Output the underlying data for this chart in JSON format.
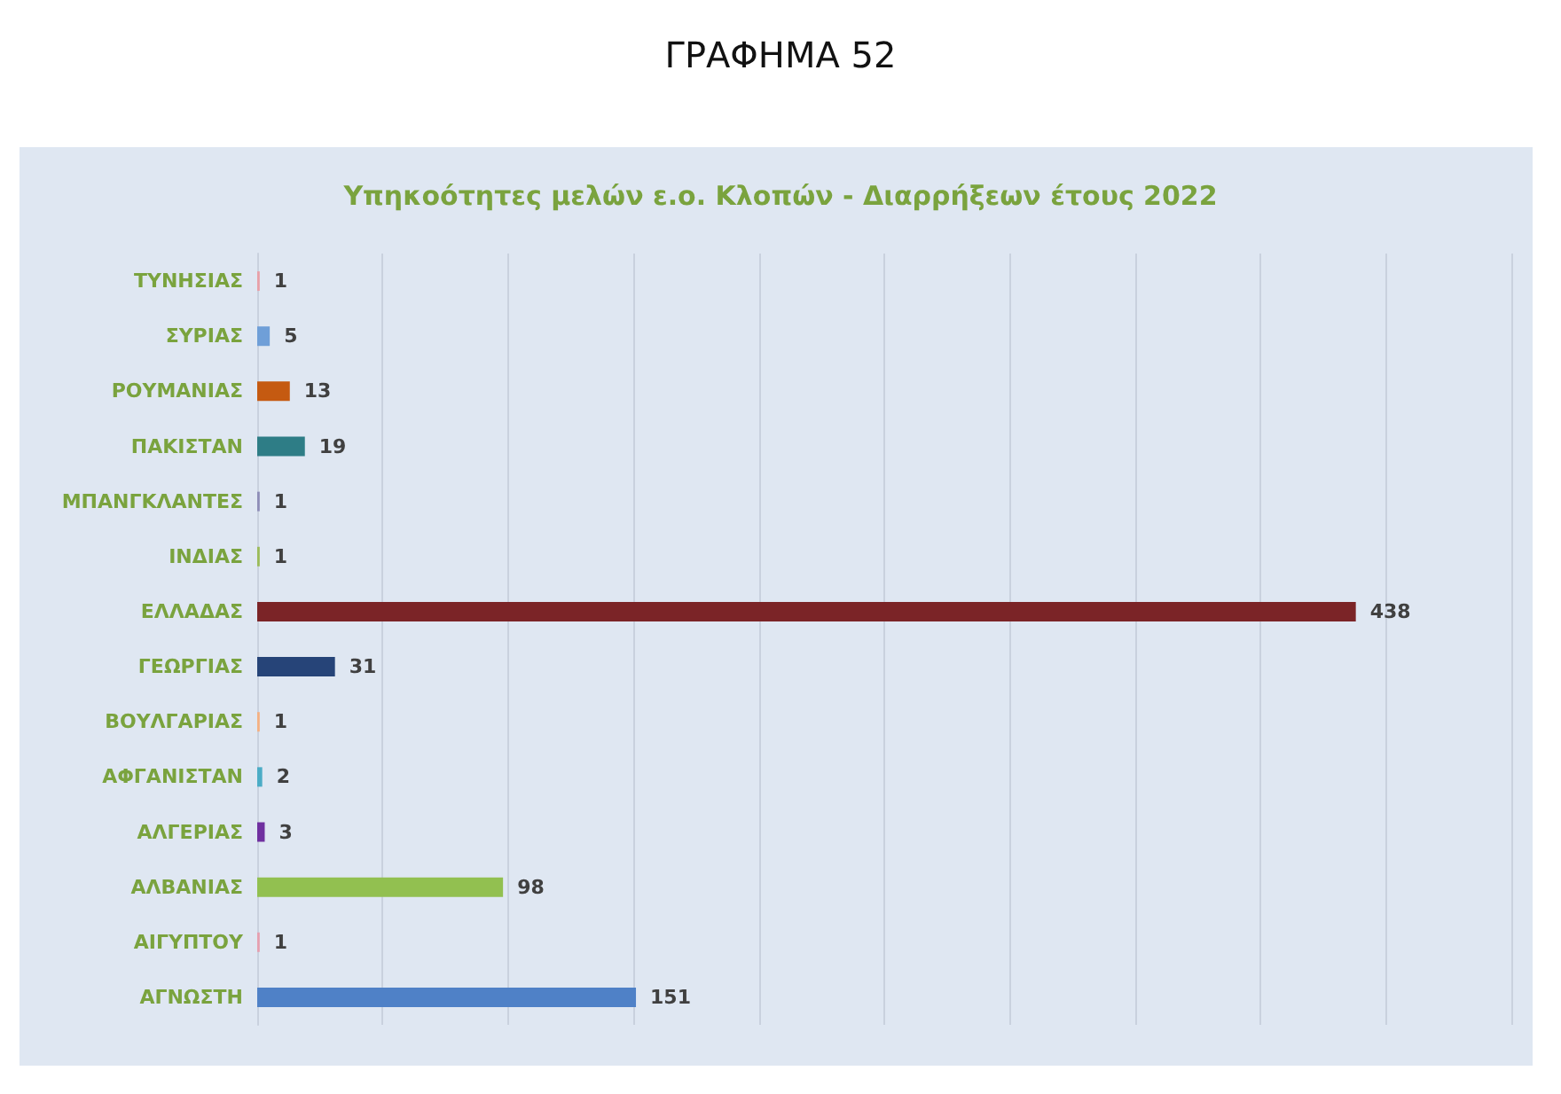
{
  "chart_data": {
    "type": "bar",
    "orientation": "horizontal",
    "title": "ΓΡΑΦΗΜΑ 52",
    "subtitle": "Υπηκοότητες μελών ε.ο. Κλοπών - Διαρρήξεων έτους 2022",
    "categories": [
      "ΤΥΝΗΣΙΑΣ",
      "ΣΥΡΙΑΣ",
      "ΡΟΥΜΑΝΙΑΣ",
      "ΠΑΚΙΣΤΑΝ",
      "ΜΠΑΝΓΚΛΑΝΤΕΣ",
      "ΙΝΔΙΑΣ",
      "ΕΛΛΑΔΑΣ",
      "ΓΕΩΡΓΙΑΣ",
      "ΒΟΥΛΓΑΡΙΑΣ",
      "ΑΦΓΑΝΙΣΤΑΝ",
      "ΑΛΓΕΡΙΑΣ",
      "ΑΛΒΑΝΙΑΣ",
      "ΑΙΓΥΠΤΟΥ",
      "ΑΓΝΩΣΤΗ"
    ],
    "values": [
      1,
      5,
      13,
      19,
      1,
      1,
      438,
      31,
      1,
      2,
      3,
      98,
      1,
      151
    ],
    "colors": [
      "#e8a0a8",
      "#6f9fd8",
      "#c55a11",
      "#2e7d86",
      "#8e8eb8",
      "#9bbb59",
      "#7b2427",
      "#264478",
      "#f4b183",
      "#4bacc6",
      "#7030a0",
      "#92c050",
      "#e6a0b0",
      "#4f81c7"
    ],
    "xlim": [
      0,
      500
    ],
    "xticks": [
      {
        "value": 0,
        "label": null
      },
      {
        "value": 50,
        "label": null
      },
      {
        "value": 100,
        "label": null
      },
      {
        "value": 150,
        "label": null
      },
      {
        "value": 200,
        "label": null
      },
      {
        "value": 250,
        "label": null
      },
      {
        "value": 300,
        "label": null
      },
      {
        "value": 350,
        "label": null
      },
      {
        "value": 400,
        "label": null
      },
      {
        "value": 450,
        "label": null
      },
      {
        "value": 500,
        "label": null
      }
    ],
    "grid": "x",
    "tick_labels": "y",
    "data_labels": true
  }
}
